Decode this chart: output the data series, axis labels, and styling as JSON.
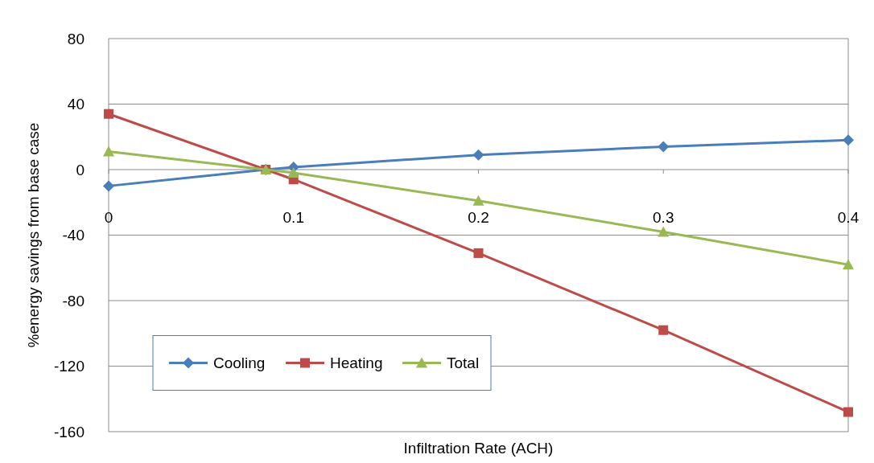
{
  "chart_data": {
    "type": "line",
    "xlabel": "Infiltration Rate (ACH)",
    "ylabel": "%energy savings from base case",
    "xlim": [
      0,
      0.4
    ],
    "xticks": [
      0,
      0.1,
      0.2,
      0.3,
      0.4
    ],
    "ylim": [
      -160,
      80
    ],
    "yticks": [
      -160,
      -120,
      -80,
      -40,
      0,
      40,
      80
    ],
    "grid": "y",
    "legend": "bottom left",
    "series": [
      {
        "name": "Cooling",
        "color": "#4a7ebb",
        "marker": "diamond",
        "x": [
          0,
          0.085,
          0.1,
          0.2,
          0.3,
          0.4
        ],
        "values": [
          -10,
          0,
          1.5,
          9,
          14,
          18
        ]
      },
      {
        "name": "Heating",
        "color": "#be4b48",
        "marker": "square",
        "x": [
          0,
          0.085,
          0.1,
          0.2,
          0.3,
          0.4
        ],
        "values": [
          34,
          0,
          -6,
          -51,
          -98,
          -148
        ]
      },
      {
        "name": "Total",
        "color": "#98b954",
        "marker": "triangle",
        "x": [
          0,
          0.085,
          0.1,
          0.2,
          0.3,
          0.4
        ],
        "values": [
          11,
          0,
          -2,
          -19,
          -38,
          -58
        ]
      }
    ]
  }
}
